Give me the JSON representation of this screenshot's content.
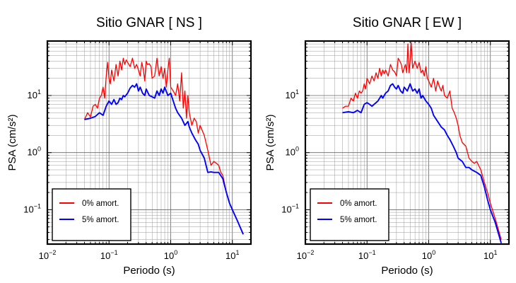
{
  "chart_data": [
    {
      "type": "line",
      "title": "Sitio GNAR [ NS ]",
      "xlabel": "Periodo (s)",
      "ylabel": "PSA (cm/s²)",
      "xscale": "log",
      "yscale": "log",
      "xlim": [
        0.01,
        20
      ],
      "ylim": [
        0.025,
        90
      ],
      "grid": true,
      "legend_position": "bottom-left",
      "x_ticks": [
        {
          "v": 0.01,
          "base": "10",
          "exp": "−2"
        },
        {
          "v": 0.1,
          "base": "10",
          "exp": "−1"
        },
        {
          "v": 1,
          "base": "10",
          "exp": "0"
        },
        {
          "v": 10,
          "base": "10",
          "exp": "1"
        }
      ],
      "y_ticks": [
        {
          "v": 0.1,
          "base": "10",
          "exp": "−1"
        },
        {
          "v": 1,
          "base": "10",
          "exp": "0"
        },
        {
          "v": 10,
          "base": "10",
          "exp": "1"
        }
      ],
      "series": [
        {
          "name": "0% amort.",
          "color": "#ff0000",
          "x": [
            0.04,
            0.045,
            0.05,
            0.055,
            0.06,
            0.065,
            0.07,
            0.075,
            0.08,
            0.085,
            0.09,
            0.095,
            0.1,
            0.105,
            0.11,
            0.12,
            0.13,
            0.14,
            0.15,
            0.16,
            0.17,
            0.18,
            0.19,
            0.2,
            0.22,
            0.24,
            0.26,
            0.28,
            0.3,
            0.32,
            0.34,
            0.36,
            0.38,
            0.4,
            0.42,
            0.45,
            0.48,
            0.5,
            0.55,
            0.6,
            0.65,
            0.7,
            0.75,
            0.8,
            0.85,
            0.9,
            0.95,
            1.0,
            1.1,
            1.2,
            1.3,
            1.4,
            1.5,
            1.6,
            1.7,
            1.8,
            1.9,
            2.0,
            2.2,
            2.4,
            2.6,
            2.8,
            3.0,
            3.5,
            4.0,
            4.5,
            5.0,
            5.5,
            6.0,
            6.5,
            7.0,
            8.0,
            9.0,
            10.0,
            12.0,
            15.0
          ],
          "y": [
            3.8,
            5.0,
            4.2,
            6.5,
            7.0,
            6.0,
            9.0,
            10.0,
            14.0,
            9.0,
            22.0,
            38.0,
            20.0,
            16.0,
            28.0,
            18.0,
            35.0,
            22.0,
            40.0,
            28.0,
            45.0,
            35.0,
            42.0,
            38.0,
            32.0,
            45.0,
            30.0,
            35.0,
            28.0,
            22.0,
            38.0,
            28.0,
            18.0,
            40.0,
            35.0,
            36.0,
            32.0,
            20.0,
            22.0,
            45.0,
            22.0,
            32.0,
            20.0,
            30.0,
            14.0,
            28.0,
            45.0,
            14.0,
            12.0,
            10.0,
            16.0,
            8.0,
            25.0,
            6.0,
            12.0,
            4.0,
            10.0,
            5.0,
            3.0,
            4.0,
            3.5,
            2.2,
            3.0,
            2.0,
            1.1,
            0.6,
            0.7,
            0.65,
            0.6,
            0.45,
            0.4,
            0.2,
            0.13,
            0.1,
            0.065,
            0.038
          ]
        },
        {
          "name": "5% amort.",
          "color": "#0000ff",
          "x": [
            0.04,
            0.05,
            0.06,
            0.07,
            0.08,
            0.09,
            0.1,
            0.11,
            0.12,
            0.13,
            0.14,
            0.15,
            0.16,
            0.17,
            0.18,
            0.2,
            0.22,
            0.24,
            0.26,
            0.28,
            0.3,
            0.32,
            0.35,
            0.38,
            0.4,
            0.45,
            0.5,
            0.55,
            0.6,
            0.65,
            0.7,
            0.75,
            0.8,
            0.9,
            1.0,
            1.1,
            1.2,
            1.3,
            1.5,
            1.7,
            1.9,
            2.0,
            2.2,
            2.5,
            2.8,
            3.0,
            3.5,
            4.0,
            4.5,
            5.0,
            6.0,
            7.0,
            8.0,
            9.0,
            10.0,
            12.0,
            15.0
          ],
          "y": [
            3.8,
            4.0,
            4.3,
            5.0,
            4.5,
            6.5,
            8.0,
            7.0,
            8.5,
            7.0,
            7.5,
            9.0,
            8.5,
            10.0,
            9.5,
            11.0,
            13.5,
            15.0,
            14.0,
            16.0,
            12.0,
            14.0,
            11.0,
            10.0,
            13.0,
            10.0,
            9.5,
            9.0,
            12.0,
            10.0,
            13.0,
            11.0,
            14.0,
            10.0,
            11.0,
            8.0,
            6.0,
            5.0,
            4.0,
            3.0,
            3.5,
            2.8,
            2.2,
            1.7,
            1.4,
            1.1,
            0.8,
            0.45,
            0.46,
            0.45,
            0.45,
            0.35,
            0.2,
            0.13,
            0.1,
            0.065,
            0.037
          ]
        }
      ]
    },
    {
      "type": "line",
      "title": "Sitio GNAR [ EW ]",
      "xlabel": "Periodo (s)",
      "ylabel": "PSA (cm/s²)",
      "xscale": "log",
      "yscale": "log",
      "xlim": [
        0.01,
        20
      ],
      "ylim": [
        0.025,
        90
      ],
      "grid": true,
      "legend_position": "bottom-left",
      "x_ticks": [
        {
          "v": 0.01,
          "base": "10",
          "exp": "−2"
        },
        {
          "v": 0.1,
          "base": "10",
          "exp": "−1"
        },
        {
          "v": 1,
          "base": "10",
          "exp": "0"
        },
        {
          "v": 10,
          "base": "10",
          "exp": "1"
        }
      ],
      "y_ticks": [
        {
          "v": 0.1,
          "base": "10",
          "exp": "−1"
        },
        {
          "v": 1,
          "base": "10",
          "exp": "0"
        },
        {
          "v": 10,
          "base": "10",
          "exp": "1"
        }
      ],
      "series": [
        {
          "name": "0% amort.",
          "color": "#ff0000",
          "x": [
            0.04,
            0.045,
            0.05,
            0.055,
            0.06,
            0.065,
            0.07,
            0.075,
            0.08,
            0.085,
            0.09,
            0.095,
            0.1,
            0.11,
            0.12,
            0.13,
            0.14,
            0.15,
            0.16,
            0.17,
            0.18,
            0.19,
            0.2,
            0.22,
            0.24,
            0.26,
            0.28,
            0.3,
            0.32,
            0.34,
            0.36,
            0.38,
            0.4,
            0.42,
            0.44,
            0.46,
            0.48,
            0.5,
            0.52,
            0.55,
            0.6,
            0.65,
            0.7,
            0.75,
            0.8,
            0.85,
            0.9,
            0.95,
            1.0,
            1.1,
            1.2,
            1.3,
            1.4,
            1.5,
            1.6,
            1.7,
            1.8,
            2.0,
            2.2,
            2.4,
            2.6,
            2.8,
            3.0,
            3.2,
            3.5,
            4.0,
            4.5,
            5.0,
            5.5,
            6.0,
            7.0,
            8.0,
            9.0,
            10.0,
            12.0,
            15.0
          ],
          "y": [
            6.0,
            6.5,
            6.5,
            9.0,
            8.0,
            11.0,
            9.0,
            12.0,
            11.0,
            12.0,
            16.0,
            13.0,
            20.0,
            16.0,
            22.0,
            18.0,
            25.0,
            20.0,
            30.0,
            22.0,
            28.0,
            24.0,
            28.0,
            22.0,
            35.0,
            28.0,
            26.0,
            22.0,
            45.0,
            40.0,
            35.0,
            25.0,
            30.0,
            35.0,
            25.0,
            80.0,
            25.0,
            40.0,
            85.0,
            30.0,
            40.0,
            30.0,
            38.0,
            25.0,
            28.0,
            22.0,
            32.0,
            20.0,
            18.0,
            14.0,
            20.0,
            12.0,
            18.0,
            14.0,
            12.0,
            15.0,
            10.0,
            9.0,
            12.0,
            6.0,
            5.0,
            4.0,
            3.0,
            2.0,
            1.5,
            1.3,
            0.8,
            0.7,
            0.65,
            0.7,
            0.5,
            0.3,
            0.2,
            0.13,
            0.07,
            0.03
          ]
        },
        {
          "name": "5% amort.",
          "color": "#0000ff",
          "x": [
            0.04,
            0.05,
            0.06,
            0.07,
            0.08,
            0.09,
            0.1,
            0.11,
            0.12,
            0.13,
            0.14,
            0.15,
            0.16,
            0.17,
            0.18,
            0.2,
            0.22,
            0.24,
            0.26,
            0.28,
            0.3,
            0.32,
            0.35,
            0.38,
            0.4,
            0.45,
            0.5,
            0.55,
            0.6,
            0.65,
            0.7,
            0.75,
            0.8,
            0.9,
            1.0,
            1.1,
            1.2,
            1.4,
            1.6,
            1.8,
            2.0,
            2.2,
            2.5,
            2.8,
            3.0,
            3.5,
            4.0,
            4.5,
            5.0,
            6.0,
            7.0,
            8.0,
            9.0,
            10.0,
            12.0,
            15.0
          ],
          "y": [
            5.0,
            5.2,
            5.0,
            5.5,
            5.0,
            7.0,
            7.5,
            7.0,
            6.5,
            7.0,
            7.5,
            8.0,
            9.0,
            10.0,
            9.0,
            11.0,
            12.0,
            15.0,
            16.0,
            14.0,
            13.0,
            15.0,
            12.0,
            11.0,
            14.0,
            12.0,
            16.0,
            12.0,
            13.0,
            11.0,
            13.0,
            9.0,
            10.0,
            8.0,
            7.0,
            6.0,
            4.5,
            3.5,
            2.8,
            2.5,
            2.0,
            1.7,
            1.3,
            1.0,
            0.8,
            0.7,
            0.55,
            0.55,
            0.5,
            0.45,
            0.4,
            0.25,
            0.15,
            0.1,
            0.06,
            0.026
          ]
        }
      ]
    }
  ]
}
